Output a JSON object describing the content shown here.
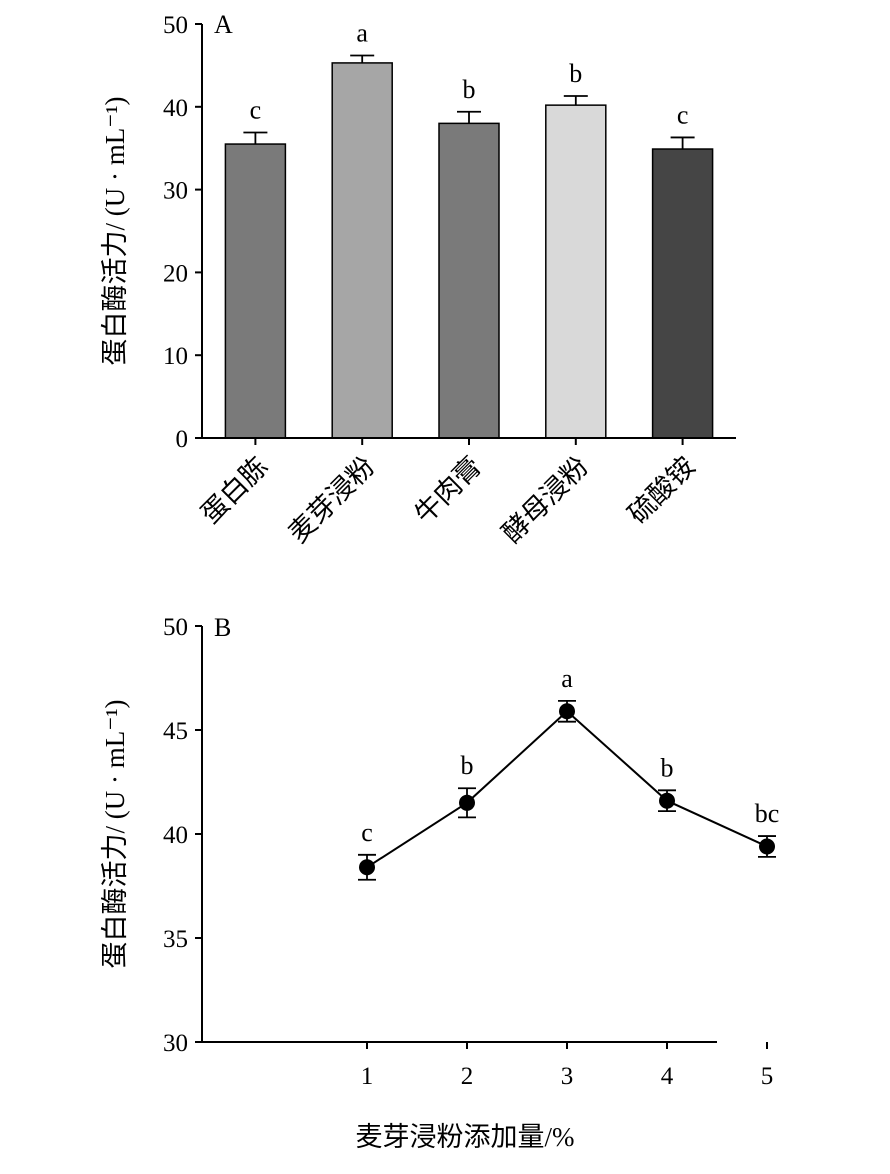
{
  "chart_data": [
    {
      "type": "bar",
      "panel_label": "A",
      "categories": [
        "蛋白胨",
        "麦芽浸粉",
        "牛肉膏",
        "酵母浸粉",
        "硫酸铵"
      ],
      "values": [
        35.5,
        45.3,
        38.0,
        40.2,
        34.9
      ],
      "errors": [
        1.4,
        0.9,
        1.4,
        1.1,
        1.4
      ],
      "significance": [
        "c",
        "a",
        "b",
        "b",
        "c"
      ],
      "bar_colors": [
        "#7a7a7a",
        "#a6a6a6",
        "#7a7a7a",
        "#d9d9d9",
        "#454545"
      ],
      "ylabel": "蛋白酶活力/ (U · mL⁻¹)",
      "xlabel": "",
      "ylim": [
        0,
        50
      ],
      "yticks": [
        "0",
        "10",
        "20",
        "30",
        "40",
        "50"
      ],
      "grid": false
    },
    {
      "type": "line",
      "panel_label": "B",
      "x": [
        1,
        2,
        3,
        4,
        5
      ],
      "xticks": [
        "1",
        "2",
        "3",
        "4",
        "5"
      ],
      "values": [
        38.4,
        41.5,
        45.9,
        41.6,
        39.4
      ],
      "errors": [
        0.6,
        0.7,
        0.5,
        0.5,
        0.5
      ],
      "significance": [
        "c",
        "b",
        "a",
        "b",
        "bc"
      ],
      "ylabel": "蛋白酶活力/ (U · mL⁻¹)",
      "xlabel": "麦芽浸粉添加量/%",
      "ylim": [
        30,
        50
      ],
      "yticks": [
        "30",
        "35",
        "40",
        "45",
        "50"
      ],
      "grid": false
    }
  ]
}
